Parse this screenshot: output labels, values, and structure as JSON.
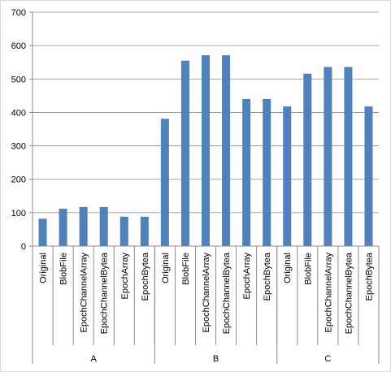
{
  "chart_data": {
    "type": "bar",
    "categories": [
      {
        "group": "A",
        "label": "Original"
      },
      {
        "group": "A",
        "label": "BlobFile"
      },
      {
        "group": "A",
        "label": "EpochChannelArray"
      },
      {
        "group": "A",
        "label": "EpochChannelBytea"
      },
      {
        "group": "A",
        "label": "EpochArray"
      },
      {
        "group": "A",
        "label": "EpochBytea"
      },
      {
        "group": "B",
        "label": "Original"
      },
      {
        "group": "B",
        "label": "BlobFile"
      },
      {
        "group": "B",
        "label": "EpochChannelArray"
      },
      {
        "group": "B",
        "label": "EpochChannelBytea"
      },
      {
        "group": "B",
        "label": "EpochArray"
      },
      {
        "group": "B",
        "label": "EpochBytea"
      },
      {
        "group": "C",
        "label": "Original"
      },
      {
        "group": "C",
        "label": "BlobFile"
      },
      {
        "group": "C",
        "label": "EpochChannelArray"
      },
      {
        "group": "C",
        "label": "EpochChannelBytea"
      },
      {
        "group": "C",
        "label": "EpochBytea"
      }
    ],
    "groups": [
      "A",
      "B",
      "C"
    ],
    "values": [
      82,
      112,
      117,
      117,
      88,
      88,
      381,
      555,
      571,
      571,
      440,
      440,
      418,
      516,
      536,
      536,
      418
    ],
    "ylim": [
      0,
      700
    ],
    "yticks": [
      0,
      100,
      200,
      300,
      400,
      500,
      600,
      700
    ],
    "grid": true,
    "legend": "none",
    "bar_color": "#4f81bd",
    "title": "",
    "xlabel": "",
    "ylabel": ""
  }
}
